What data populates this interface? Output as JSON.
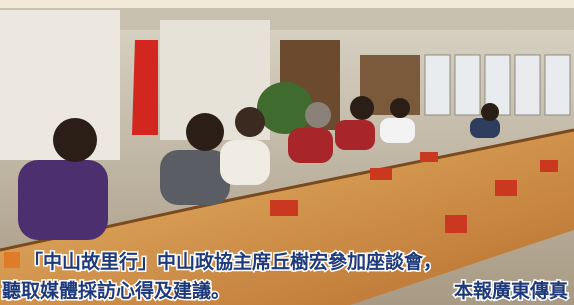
{
  "caption": {
    "line1": "「中山故里行」中山政協主席丘樹宏參加座談會，",
    "line2": "聽取媒體採訪心得及建議。",
    "credit": "本報廣東傳真"
  }
}
